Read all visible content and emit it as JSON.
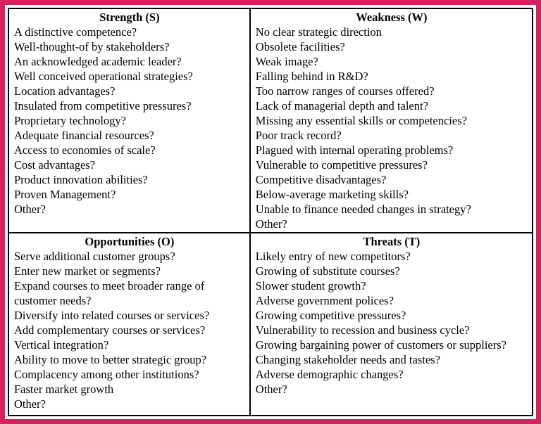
{
  "colors": {
    "frame_border": "#d5215f",
    "table_border": "#000000",
    "text": "#000000",
    "background": "#ffffff"
  },
  "quadrants": {
    "strength": {
      "title": "Strength (S)",
      "items": [
        "A distinctive competence?",
        "Well-thought-of by stakeholders?",
        "An acknowledged academic leader?",
        "Well conceived operational strategies?",
        "Location advantages?",
        "Insulated from competitive pressures?",
        "Proprietary technology?",
        "Adequate financial resources?",
        "Access to economies of scale?",
        "Cost advantages?",
        "Product innovation abilities?",
        "Proven Management?",
        "Other?"
      ]
    },
    "weakness": {
      "title": "Weakness (W)",
      "items": [
        "No clear strategic direction",
        "Obsolete facilities?",
        "Weak image?",
        "Falling behind in R&D?",
        "Too narrow ranges of courses offered?",
        "Lack of managerial depth and talent?",
        "Missing any essential skills or competencies?",
        "Poor track record?",
        "Plagued with internal operating problems?",
        "Vulnerable to competitive pressures?",
        "Competitive disadvantages?",
        "Below-average marketing skills?",
        "Unable to finance needed changes in strategy?",
        "Other?"
      ]
    },
    "opportunities": {
      "title": "Opportunities (O)",
      "items": [
        "Serve additional customer groups?",
        "Enter new market or segments?",
        "Expand courses to meet broader range of customer needs?",
        "Diversify into related courses or services?",
        "Add complementary courses or services?",
        "Vertical integration?",
        "Ability to move to better strategic group?",
        "Complacency among other institutions?",
        "Faster market growth",
        "Other?"
      ]
    },
    "threats": {
      "title": "Threats (T)",
      "items": [
        "Likely entry of new competitors?",
        "Growing of substitute courses?",
        "Slower student growth?",
        "Adverse government polices?",
        "Growing competitive pressures?",
        "Vulnerability to recession and business cycle?",
        "Growing bargaining power of customers or suppliers?",
        "Changing stakeholder needs and tastes?",
        "Adverse demographic changes?",
        "Other?"
      ]
    }
  }
}
